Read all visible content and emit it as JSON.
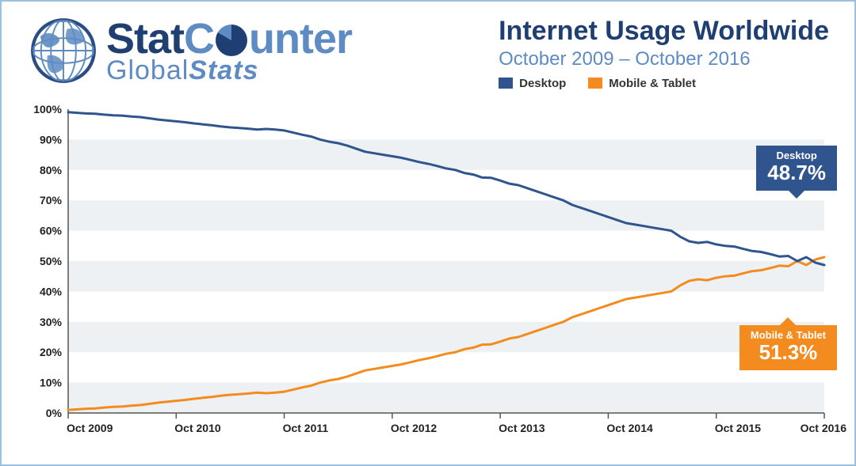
{
  "logo": {
    "brand_a": "Stat",
    "brand_b": "C",
    "brand_c": "unter",
    "sub_a": "Global",
    "sub_b": "Stats"
  },
  "title": "Internet Usage Worldwide",
  "subtitle": "October 2009 – October 2016",
  "legend": {
    "desktop": {
      "label": "Desktop",
      "color": "#30548e"
    },
    "mobile": {
      "label": "Mobile & Tablet",
      "color": "#f38b1e"
    }
  },
  "badges": {
    "desktop": {
      "label": "Desktop",
      "value": "48.7%",
      "color": "#30548e"
    },
    "mobile": {
      "label": "Mobile & Tablet",
      "value": "51.3%",
      "color": "#f38b1e"
    }
  },
  "chart": {
    "type": "line",
    "background": "#ffffff",
    "band_color": "#eef1f4",
    "axis_color": "#555555",
    "ylim": [
      0,
      100
    ],
    "ytick_step": 10,
    "ytick_suffix": "%",
    "line_width": 3,
    "label_fontsize": 14,
    "xticks": [
      "Oct 2009",
      "Oct 2010",
      "Oct 2011",
      "Oct 2012",
      "Oct 2013",
      "Oct 2014",
      "Oct 2015",
      "Oct 2016"
    ],
    "n_points": 85,
    "series": {
      "desktop": {
        "color": "#30548e",
        "values": [
          99.0,
          98.8,
          98.6,
          98.5,
          98.2,
          98.0,
          97.9,
          97.6,
          97.4,
          97.0,
          96.6,
          96.3,
          96.0,
          95.7,
          95.3,
          95.0,
          94.7,
          94.3,
          94.0,
          93.8,
          93.6,
          93.3,
          93.5,
          93.3,
          93.0,
          92.3,
          91.6,
          91.0,
          90.0,
          89.3,
          88.8,
          88.0,
          87.0,
          86.0,
          85.5,
          85.0,
          84.5,
          84.0,
          83.3,
          82.6,
          82.0,
          81.3,
          80.5,
          80.0,
          79.0,
          78.5,
          77.5,
          77.4,
          76.5,
          75.5,
          75.0,
          74.0,
          73.0,
          72.0,
          71.0,
          70.0,
          68.5,
          67.5,
          66.5,
          65.5,
          64.5,
          63.5,
          62.5,
          62.0,
          61.5,
          61.0,
          60.5,
          60.0,
          58.0,
          56.5,
          56.0,
          56.3,
          55.5,
          55.0,
          54.8,
          54.0,
          53.3,
          53.0,
          52.3,
          51.5,
          51.7,
          50.0,
          51.3,
          49.5,
          48.7
        ]
      },
      "mobile": {
        "color": "#f38b1e",
        "values": [
          1.0,
          1.2,
          1.4,
          1.5,
          1.8,
          2.0,
          2.1,
          2.4,
          2.6,
          3.0,
          3.4,
          3.7,
          4.0,
          4.3,
          4.7,
          5.0,
          5.3,
          5.7,
          6.0,
          6.2,
          6.4,
          6.7,
          6.5,
          6.7,
          7.0,
          7.7,
          8.4,
          9.0,
          10.0,
          10.7,
          11.2,
          12.0,
          13.0,
          14.0,
          14.5,
          15.0,
          15.5,
          16.0,
          16.7,
          17.4,
          18.0,
          18.7,
          19.5,
          20.0,
          21.0,
          21.5,
          22.5,
          22.6,
          23.5,
          24.5,
          25.0,
          26.0,
          27.0,
          28.0,
          29.0,
          30.0,
          31.5,
          32.5,
          33.5,
          34.5,
          35.5,
          36.5,
          37.5,
          38.0,
          38.5,
          39.0,
          39.5,
          40.0,
          42.0,
          43.5,
          44.0,
          43.7,
          44.5,
          45.0,
          45.2,
          46.0,
          46.7,
          47.0,
          47.7,
          48.5,
          48.3,
          50.0,
          48.7,
          50.5,
          51.3
        ]
      }
    }
  }
}
